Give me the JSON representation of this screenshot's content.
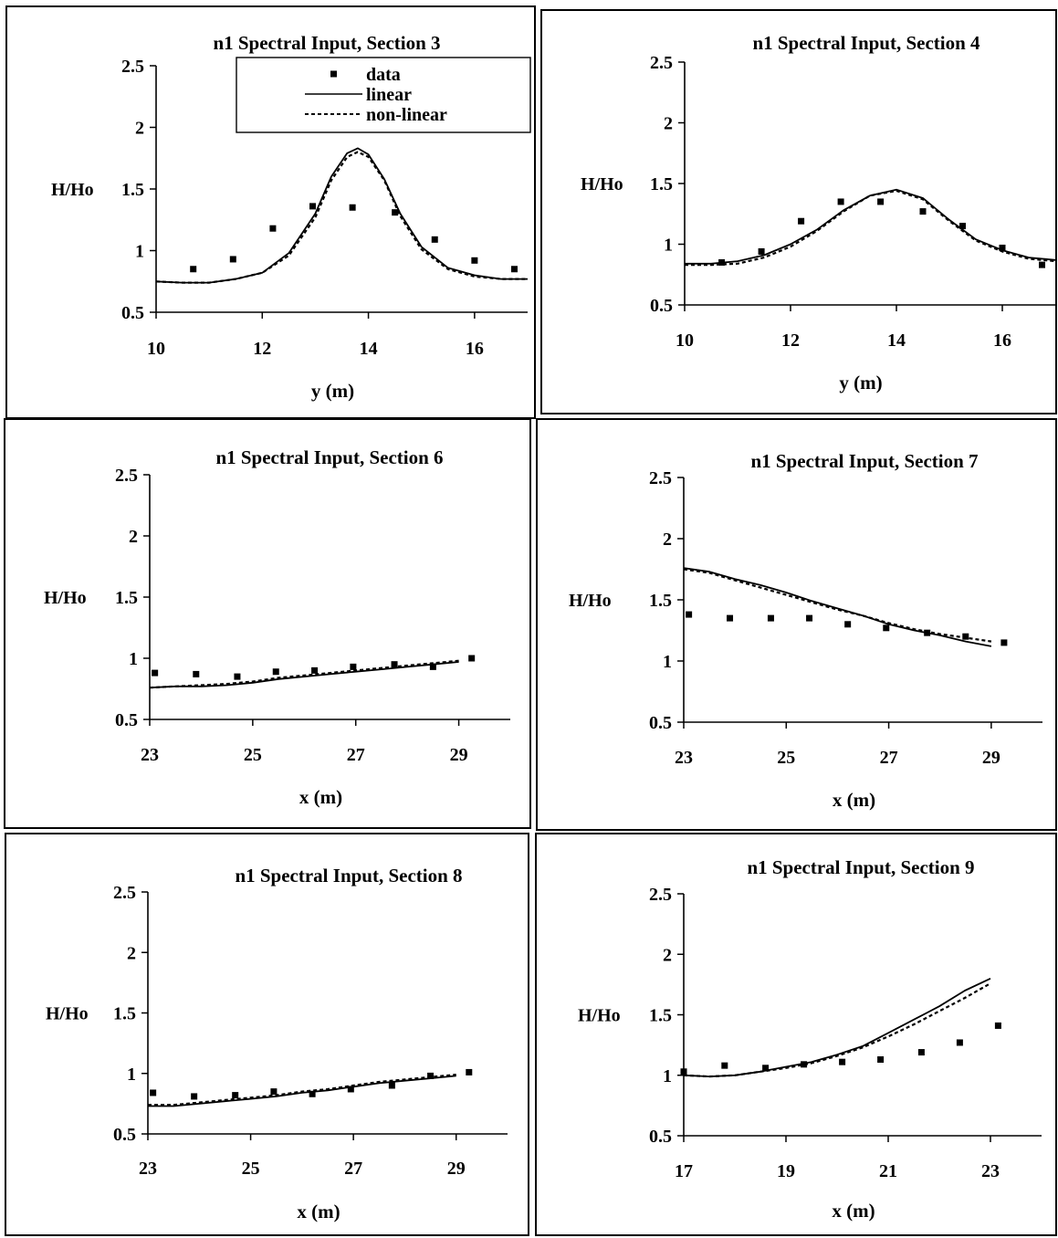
{
  "chart_data": [
    {
      "type": "line",
      "title": "n1 Spectral Input, Section 3",
      "xlabel": "y (m)",
      "ylabel": "H/Ho",
      "xlim": [
        10,
        17
      ],
      "ylim": [
        0.5,
        2.5
      ],
      "xticks": [
        10,
        12,
        14,
        16
      ],
      "yticks": [
        0.5,
        1,
        1.5,
        2,
        2.5
      ],
      "legend": {
        "position": "top-right",
        "entries": [
          "data",
          "linear",
          "non-linear"
        ]
      },
      "series": [
        {
          "name": "data",
          "style": "markers",
          "x": [
            10.7,
            11.45,
            12.2,
            12.95,
            13.7,
            14.5,
            15.25,
            16.0,
            16.75
          ],
          "y": [
            0.85,
            0.93,
            1.18,
            1.36,
            1.35,
            1.31,
            1.09,
            0.92,
            0.85
          ]
        },
        {
          "name": "linear",
          "style": "solid",
          "x": [
            10,
            10.5,
            11,
            11.5,
            12,
            12.5,
            13,
            13.3,
            13.6,
            13.8,
            14.0,
            14.3,
            14.6,
            15,
            15.5,
            16,
            16.5,
            17
          ],
          "y": [
            0.75,
            0.74,
            0.74,
            0.77,
            0.82,
            0.98,
            1.3,
            1.6,
            1.79,
            1.83,
            1.78,
            1.58,
            1.3,
            1.03,
            0.86,
            0.8,
            0.77,
            0.77
          ]
        },
        {
          "name": "non-linear",
          "style": "dashed",
          "x": [
            10,
            10.5,
            11,
            11.5,
            12,
            12.5,
            13,
            13.3,
            13.6,
            13.8,
            14.0,
            14.3,
            14.6,
            15,
            15.5,
            16,
            16.5,
            17
          ],
          "y": [
            0.75,
            0.74,
            0.74,
            0.77,
            0.82,
            0.96,
            1.27,
            1.57,
            1.76,
            1.8,
            1.76,
            1.57,
            1.28,
            1.01,
            0.85,
            0.79,
            0.77,
            0.77
          ]
        }
      ]
    },
    {
      "type": "line",
      "title": "n1 Spectral Input, Section 4",
      "xlabel": "y (m)",
      "ylabel": "H/Ho",
      "xlim": [
        10,
        17
      ],
      "ylim": [
        0.5,
        2.5
      ],
      "xticks": [
        10,
        12,
        14,
        16
      ],
      "yticks": [
        0.5,
        1,
        1.5,
        2,
        2.5
      ],
      "series": [
        {
          "name": "data",
          "style": "markers",
          "x": [
            10.7,
            11.45,
            12.2,
            12.95,
            13.7,
            14.5,
            15.25,
            16.0,
            16.75
          ],
          "y": [
            0.85,
            0.94,
            1.19,
            1.35,
            1.35,
            1.27,
            1.15,
            0.97,
            0.83
          ]
        },
        {
          "name": "linear",
          "style": "solid",
          "x": [
            10,
            10.5,
            11,
            11.5,
            12,
            12.5,
            13,
            13.5,
            14,
            14.5,
            15,
            15.5,
            16,
            16.5,
            17
          ],
          "y": [
            0.84,
            0.84,
            0.86,
            0.91,
            1.0,
            1.12,
            1.28,
            1.4,
            1.45,
            1.38,
            1.2,
            1.04,
            0.95,
            0.89,
            0.87
          ]
        },
        {
          "name": "non-linear",
          "style": "dashed",
          "x": [
            10,
            10.5,
            11,
            11.5,
            12,
            12.5,
            13,
            13.5,
            14,
            14.5,
            15,
            15.5,
            16,
            16.5,
            17
          ],
          "y": [
            0.83,
            0.83,
            0.84,
            0.89,
            0.98,
            1.11,
            1.27,
            1.4,
            1.44,
            1.37,
            1.19,
            1.03,
            0.94,
            0.88,
            0.86
          ]
        }
      ]
    },
    {
      "type": "line",
      "title": "n1 Spectral Input, Section 6",
      "xlabel": "x (m)",
      "ylabel": "H/Ho",
      "xlim": [
        23,
        30
      ],
      "ylim": [
        0.5,
        2.5
      ],
      "xticks": [
        23,
        25,
        27,
        29
      ],
      "yticks": [
        0.5,
        1,
        1.5,
        2,
        2.5
      ],
      "series": [
        {
          "name": "data",
          "style": "markers",
          "x": [
            23.1,
            23.9,
            24.7,
            25.45,
            26.2,
            26.95,
            27.75,
            28.5,
            29.25
          ],
          "y": [
            0.88,
            0.87,
            0.85,
            0.89,
            0.9,
            0.93,
            0.95,
            0.93,
            1.0
          ]
        },
        {
          "name": "linear",
          "style": "solid",
          "x": [
            23,
            23.5,
            24,
            24.5,
            25,
            25.5,
            26,
            26.5,
            27,
            27.5,
            28,
            28.5,
            29
          ],
          "y": [
            0.76,
            0.77,
            0.77,
            0.78,
            0.8,
            0.83,
            0.85,
            0.87,
            0.89,
            0.91,
            0.93,
            0.95,
            0.97
          ]
        },
        {
          "name": "non-linear",
          "style": "dashed",
          "x": [
            23,
            23.5,
            24,
            24.5,
            25,
            25.5,
            26,
            26.5,
            27,
            27.5,
            28,
            28.5,
            29
          ],
          "y": [
            0.76,
            0.77,
            0.78,
            0.79,
            0.81,
            0.84,
            0.86,
            0.88,
            0.9,
            0.92,
            0.94,
            0.96,
            0.98
          ]
        }
      ]
    },
    {
      "type": "line",
      "title": "n1 Spectral Input, Section 7",
      "xlabel": "x (m)",
      "ylabel": "H/Ho",
      "xlim": [
        23,
        30
      ],
      "ylim": [
        0.5,
        2.5
      ],
      "xticks": [
        23,
        25,
        27,
        29
      ],
      "yticks": [
        0.5,
        1,
        1.5,
        2,
        2.5
      ],
      "series": [
        {
          "name": "data",
          "style": "markers",
          "x": [
            23.1,
            23.9,
            24.7,
            25.45,
            26.2,
            26.95,
            27.75,
            28.5,
            29.25
          ],
          "y": [
            1.38,
            1.35,
            1.35,
            1.35,
            1.3,
            1.27,
            1.23,
            1.2,
            1.15
          ]
        },
        {
          "name": "linear",
          "style": "solid",
          "x": [
            23,
            23.5,
            24,
            24.5,
            25,
            25.5,
            26,
            26.5,
            27,
            27.5,
            28,
            28.5,
            29
          ],
          "y": [
            1.76,
            1.73,
            1.67,
            1.62,
            1.56,
            1.49,
            1.43,
            1.37,
            1.3,
            1.25,
            1.21,
            1.16,
            1.12
          ]
        },
        {
          "name": "non-linear",
          "style": "dashed",
          "x": [
            23,
            23.5,
            24,
            24.5,
            25,
            25.5,
            26,
            26.5,
            27,
            27.5,
            28,
            28.5,
            29
          ],
          "y": [
            1.75,
            1.72,
            1.66,
            1.6,
            1.54,
            1.48,
            1.42,
            1.37,
            1.31,
            1.26,
            1.22,
            1.19,
            1.16
          ]
        }
      ]
    },
    {
      "type": "line",
      "title": "n1 Spectral Input, Section 8",
      "xlabel": "x (m)",
      "ylabel": "H/Ho",
      "xlim": [
        23,
        30
      ],
      "ylim": [
        0.5,
        2.5
      ],
      "xticks": [
        23,
        25,
        27,
        29
      ],
      "yticks": [
        0.5,
        1,
        1.5,
        2,
        2.5
      ],
      "series": [
        {
          "name": "data",
          "style": "markers",
          "x": [
            23.1,
            23.9,
            24.7,
            25.45,
            26.2,
            26.95,
            27.75,
            28.5,
            29.25
          ],
          "y": [
            0.84,
            0.81,
            0.82,
            0.85,
            0.83,
            0.87,
            0.9,
            0.98,
            1.01
          ]
        },
        {
          "name": "linear",
          "style": "solid",
          "x": [
            23,
            23.5,
            24,
            24.5,
            25,
            25.5,
            26,
            26.5,
            27,
            27.5,
            28,
            28.5,
            29
          ],
          "y": [
            0.73,
            0.73,
            0.75,
            0.77,
            0.79,
            0.81,
            0.84,
            0.86,
            0.89,
            0.92,
            0.94,
            0.96,
            0.98
          ]
        },
        {
          "name": "non-linear",
          "style": "dashed",
          "x": [
            23,
            23.5,
            24,
            24.5,
            25,
            25.5,
            26,
            26.5,
            27,
            27.5,
            28,
            28.5,
            29
          ],
          "y": [
            0.74,
            0.74,
            0.76,
            0.78,
            0.8,
            0.82,
            0.85,
            0.87,
            0.9,
            0.93,
            0.95,
            0.97,
            0.99
          ]
        }
      ]
    },
    {
      "type": "line",
      "title": "n1 Spectral Input, Section 9",
      "xlabel": "x (m)",
      "ylabel": "H/Ho",
      "xlim": [
        17,
        24
      ],
      "ylim": [
        0.5,
        2.5
      ],
      "xticks": [
        17,
        19,
        21,
        23
      ],
      "yticks": [
        0.5,
        1,
        1.5,
        2,
        2.5
      ],
      "series": [
        {
          "name": "data",
          "style": "markers",
          "x": [
            17.0,
            17.8,
            18.6,
            19.35,
            20.1,
            20.85,
            21.65,
            22.4,
            23.15
          ],
          "y": [
            1.03,
            1.08,
            1.06,
            1.09,
            1.11,
            1.13,
            1.19,
            1.27,
            1.41
          ]
        },
        {
          "name": "linear",
          "style": "solid",
          "x": [
            17,
            17.5,
            18,
            18.5,
            19,
            19.5,
            20,
            20.5,
            21,
            21.5,
            22,
            22.5,
            23
          ],
          "y": [
            1.0,
            0.99,
            1.0,
            1.03,
            1.07,
            1.11,
            1.17,
            1.24,
            1.35,
            1.46,
            1.57,
            1.7,
            1.8
          ]
        },
        {
          "name": "non-linear",
          "style": "dashed",
          "x": [
            17,
            17.5,
            18,
            18.5,
            19,
            19.5,
            20,
            20.5,
            21,
            21.5,
            22,
            22.5,
            23
          ],
          "y": [
            1.0,
            0.99,
            1.0,
            1.03,
            1.06,
            1.1,
            1.16,
            1.23,
            1.32,
            1.42,
            1.53,
            1.64,
            1.76
          ]
        }
      ]
    }
  ]
}
